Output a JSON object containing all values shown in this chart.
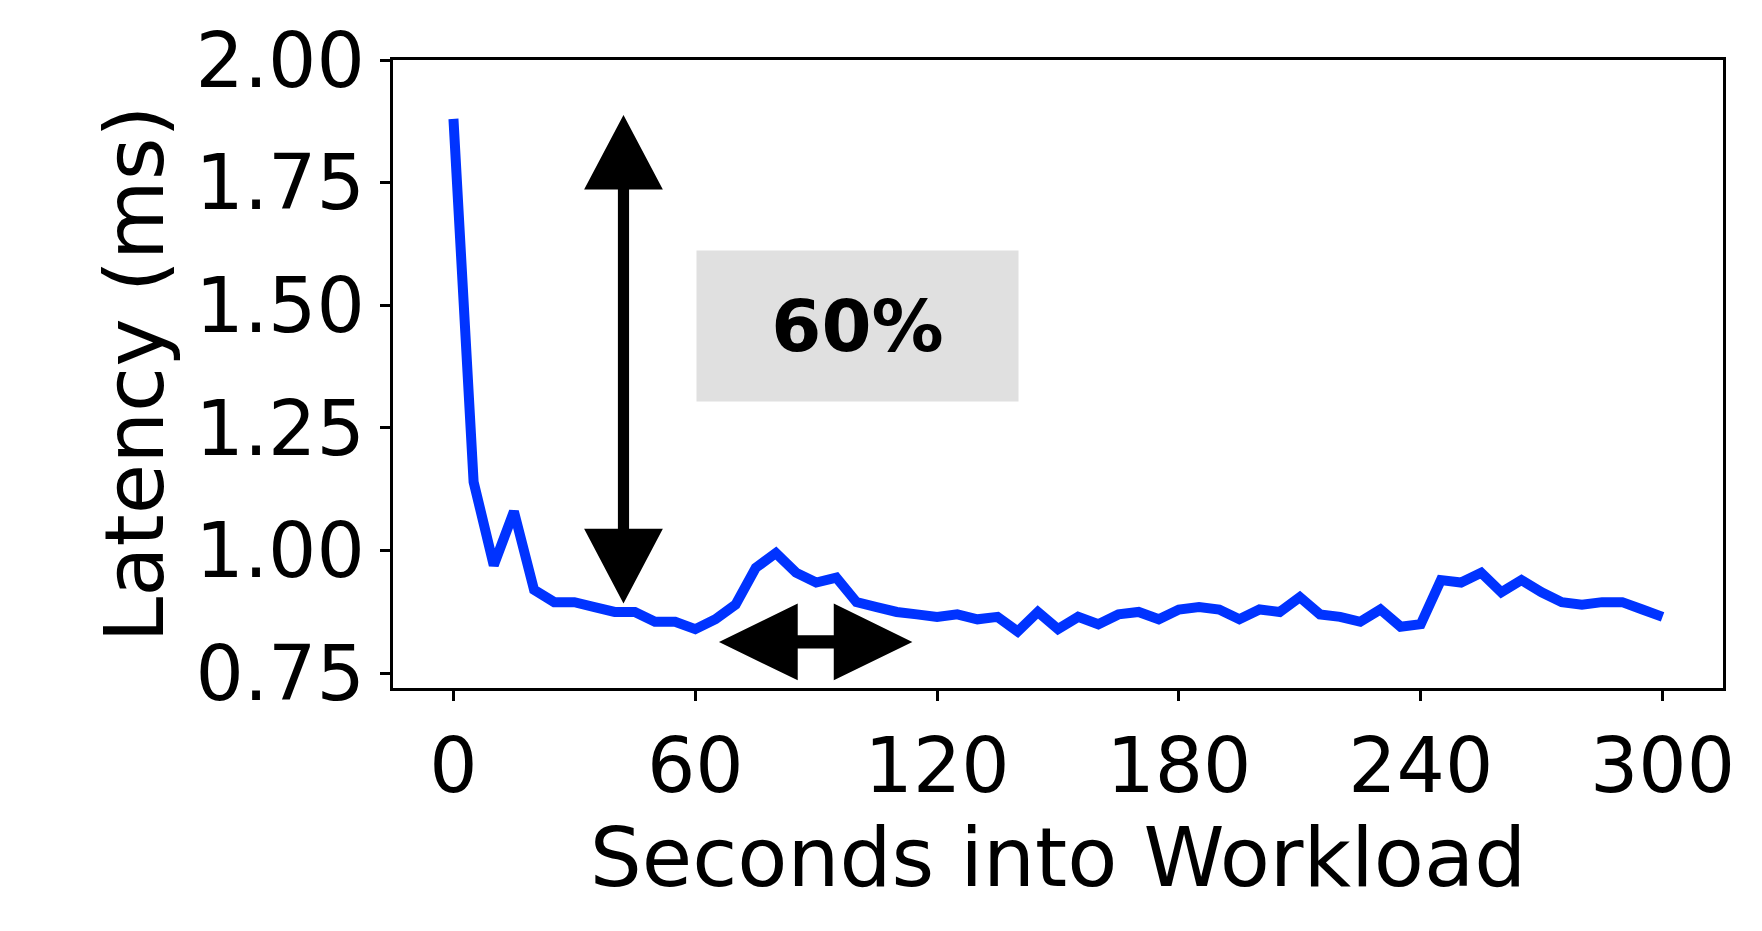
{
  "chart_data": {
    "type": "line",
    "xlabel": "Seconds into Workload",
    "ylabel": "Latency (ms)",
    "x": [
      0,
      5,
      10,
      15,
      20,
      25,
      30,
      35,
      40,
      45,
      50,
      55,
      60,
      65,
      70,
      75,
      80,
      85,
      90,
      95,
      100,
      105,
      110,
      115,
      120,
      125,
      130,
      135,
      140,
      145,
      150,
      155,
      160,
      165,
      170,
      175,
      180,
      185,
      190,
      195,
      200,
      205,
      210,
      215,
      220,
      225,
      230,
      235,
      240,
      245,
      250,
      255,
      260,
      265,
      270,
      275,
      280,
      285,
      290,
      295,
      300
    ],
    "series": [
      {
        "color": "#0033ff",
        "values": [
          1.88,
          1.14,
          0.97,
          1.08,
          0.92,
          0.895,
          0.895,
          0.885,
          0.875,
          0.875,
          0.855,
          0.855,
          0.84,
          0.86,
          0.89,
          0.965,
          0.995,
          0.955,
          0.935,
          0.945,
          0.895,
          0.885,
          0.875,
          0.87,
          0.865,
          0.87,
          0.86,
          0.865,
          0.835,
          0.875,
          0.84,
          0.865,
          0.85,
          0.87,
          0.875,
          0.86,
          0.88,
          0.885,
          0.88,
          0.86,
          0.88,
          0.875,
          0.905,
          0.87,
          0.865,
          0.855,
          0.88,
          0.845,
          0.85,
          0.94,
          0.935,
          0.955,
          0.915,
          0.94,
          0.915,
          0.895,
          0.89,
          0.895,
          0.895,
          0.88,
          0.865
        ]
      }
    ],
    "xlim": [
      -15,
      315
    ],
    "xticks": [
      0,
      60,
      120,
      180,
      240,
      300
    ],
    "ylim": [
      0.72,
      2.0
    ],
    "yticks": [
      {
        "value": 0.75,
        "label": "0.75"
      },
      {
        "value": 1.0,
        "label": "1.00"
      },
      {
        "value": 1.25,
        "label": "1.25"
      },
      {
        "value": 1.5,
        "label": "1.50"
      },
      {
        "value": 1.75,
        "label": "1.75"
      },
      {
        "value": 2.0,
        "label": "2.00"
      }
    ],
    "annotations": [
      "60%"
    ],
    "legend": false,
    "marker": "none",
    "line_style": "solid"
  }
}
